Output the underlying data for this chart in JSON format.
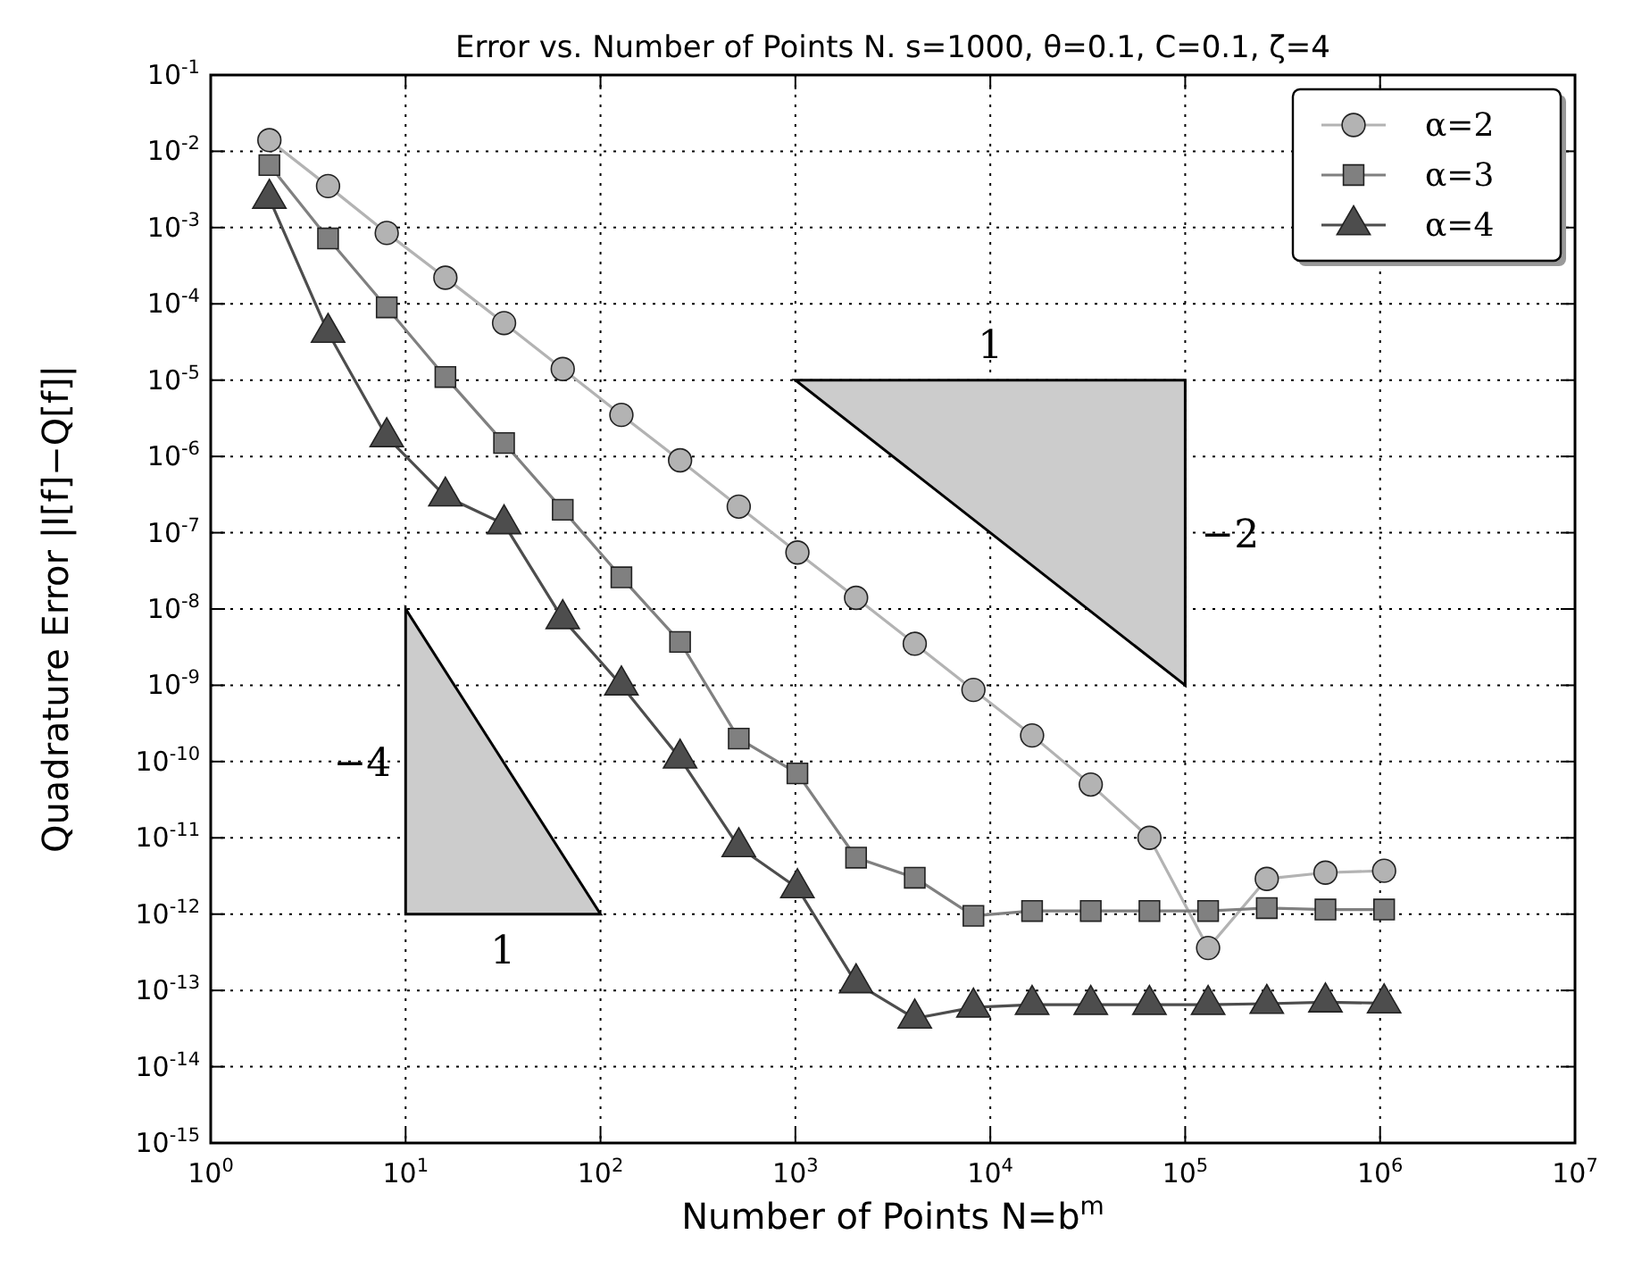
{
  "chart_data": {
    "type": "line",
    "title": "Error vs. Number of Points N. s=1000, θ=0.1, C=0.1, ζ=4",
    "xlabel": "Number of Points N=b$^{m}$",
    "ylabel": "Quadrature Error |I[f]−Q[f]|",
    "x": [
      2,
      4,
      8,
      16,
      32,
      64,
      128,
      256,
      512,
      1024,
      2048,
      4096,
      8192,
      16384,
      32768,
      65536,
      131072,
      262144,
      524288,
      1048576
    ],
    "series": [
      {
        "name": "α=2",
        "color": "#b3b3b3",
        "marker": "circle",
        "values": [
          0.014,
          0.0035,
          0.00085,
          0.00022,
          5.6e-05,
          1.4e-05,
          3.5e-06,
          8.9e-07,
          2.2e-07,
          5.5e-08,
          1.4e-08,
          3.5e-09,
          8.7e-10,
          2.2e-10,
          5e-11,
          1e-11,
          3.6e-13,
          2.9e-12,
          3.5e-12,
          3.7e-12
        ]
      },
      {
        "name": "α=3",
        "color": "#808080",
        "marker": "square",
        "values": [
          0.0066,
          0.00072,
          9e-05,
          1.1e-05,
          1.5e-06,
          2e-07,
          2.6e-08,
          3.7e-09,
          2e-10,
          7e-11,
          5.5e-12,
          3e-12,
          9.5e-13,
          1.1e-12,
          1.1e-12,
          1.1e-12,
          1.1e-12,
          1.2e-12,
          1.15e-12,
          1.15e-12
        ]
      },
      {
        "name": "α=4",
        "color": "#4d4d4d",
        "marker": "triangle",
        "values": [
          0.0024,
          4.2e-05,
          1.8e-06,
          3e-07,
          1.3e-07,
          7.4e-09,
          1e-09,
          1.1e-10,
          7.6e-12,
          2.2e-12,
          1.25e-13,
          4.3e-14,
          6e-14,
          6.5e-14,
          6.5e-14,
          6.5e-14,
          6.5e-14,
          6.7e-14,
          7e-14,
          6.8e-14
        ]
      }
    ],
    "log": "xy",
    "grid": true,
    "legend": "top right",
    "line_style": "solid",
    "xlim": [
      1,
      10000000.0
    ],
    "ylim": [
      1e-15,
      0.1
    ],
    "xticks": [
      {
        "value": 1,
        "label": "10$^{0}$"
      },
      {
        "value": 10,
        "label": "10$^{1}$"
      },
      {
        "value": 100,
        "label": "10$^{2}$"
      },
      {
        "value": 1000,
        "label": "10$^{3}$"
      },
      {
        "value": 10000,
        "label": "10$^{4}$"
      },
      {
        "value": 100000,
        "label": "10$^{5}$"
      },
      {
        "value": 1000000,
        "label": "10$^{6}$"
      },
      {
        "value": 10000000,
        "label": "10$^{7}$"
      }
    ],
    "yticks": [
      {
        "value": 1e-15,
        "label": "10$^{-15}$"
      },
      {
        "value": 1e-14,
        "label": "10$^{-14}$"
      },
      {
        "value": 1e-13,
        "label": "10$^{-13}$"
      },
      {
        "value": 1e-12,
        "label": "10$^{-12}$"
      },
      {
        "value": 1e-11,
        "label": "10$^{-11}$"
      },
      {
        "value": 1e-10,
        "label": "10$^{-10}$"
      },
      {
        "value": 1e-09,
        "label": "10$^{-9}$"
      },
      {
        "value": 1e-08,
        "label": "10$^{-8}$"
      },
      {
        "value": 1e-07,
        "label": "10$^{-7}$"
      },
      {
        "value": 1e-06,
        "label": "10$^{-6}$"
      },
      {
        "value": 1e-05,
        "label": "10$^{-5}$"
      },
      {
        "value": 0.0001,
        "label": "10$^{-4}$"
      },
      {
        "value": 0.001,
        "label": "10$^{-3}$"
      },
      {
        "value": 0.01,
        "label": "10$^{-2}$"
      },
      {
        "value": 0.1,
        "label": "10$^{-1}$"
      }
    ],
    "annotations": [
      "1",
      "−2",
      "−4",
      "1"
    ]
  }
}
